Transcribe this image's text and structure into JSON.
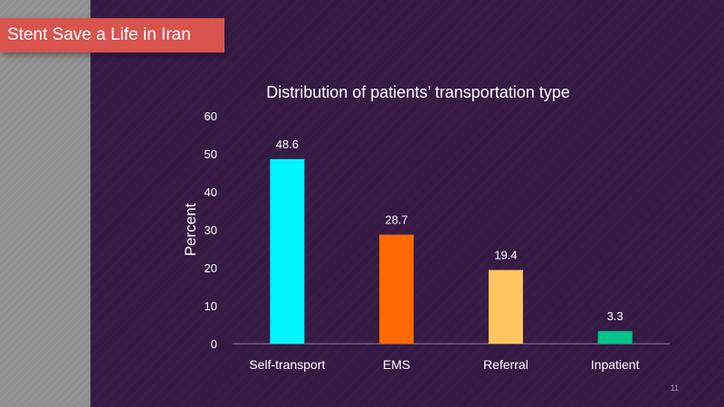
{
  "slide": {
    "banner_title": "Stent Save a Life in Iran",
    "slide_number": "11"
  },
  "colors": {
    "background": "#351a44",
    "left_panel": "#8f8f8f",
    "banner": "#d9534f",
    "text": "#ffffff",
    "axis_line": "#8a7d94"
  },
  "chart_data": {
    "type": "bar",
    "title": "Distribution  of patients’ transportation  type",
    "xlabel": "",
    "ylabel": "Percent",
    "categories": [
      "Self-transport",
      "EMS",
      "Referral",
      "Inpatient"
    ],
    "values": [
      48.6,
      28.7,
      19.4,
      3.3
    ],
    "value_labels": [
      "48.6",
      "28.7",
      "19.4",
      "3.3"
    ],
    "bar_colors": [
      "#00f5ff",
      "#ff6a00",
      "#ffc55e",
      "#00c58a"
    ],
    "ylim": [
      0,
      60
    ],
    "yticks": [
      0,
      10,
      20,
      30,
      40,
      50,
      60
    ],
    "grid": false,
    "legend": "none"
  }
}
